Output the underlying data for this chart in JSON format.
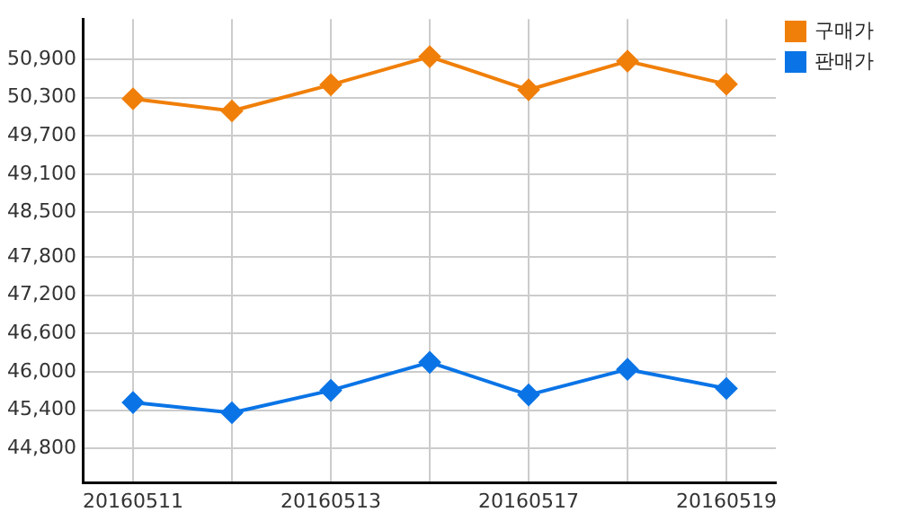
{
  "chart_data": {
    "type": "line",
    "categories": [
      "20160511",
      null,
      "20160513",
      null,
      "20160517",
      null,
      "20160519"
    ],
    "series": [
      {
        "name": "구매가",
        "color": "#f07f09",
        "values": [
          50280,
          50090,
          50500,
          50940,
          50420,
          50870,
          50510
        ]
      },
      {
        "name": "판매가",
        "color": "#0a74e6",
        "values": [
          45520,
          45360,
          45710,
          46150,
          45640,
          46040,
          45740
        ]
      }
    ],
    "ylim": [
      44260,
      51530
    ],
    "yticks": [
      {
        "value": 44800,
        "label": "44,800"
      },
      {
        "value": 45400,
        "label": "45,400"
      },
      {
        "value": 46000,
        "label": "46,000"
      },
      {
        "value": 46600,
        "label": "46,600"
      },
      {
        "value": 47200,
        "label": "47,200"
      },
      {
        "value": 47800,
        "label": "47,800"
      },
      {
        "value": 48500,
        "label": "48,500"
      },
      {
        "value": 49100,
        "label": "49,100"
      },
      {
        "value": 49700,
        "label": "49,700"
      },
      {
        "value": 50300,
        "label": "50,300"
      },
      {
        "value": 50900,
        "label": "50,900"
      }
    ],
    "grid": true,
    "legend": "top right",
    "marker": "diamond",
    "line_style": "solid"
  }
}
